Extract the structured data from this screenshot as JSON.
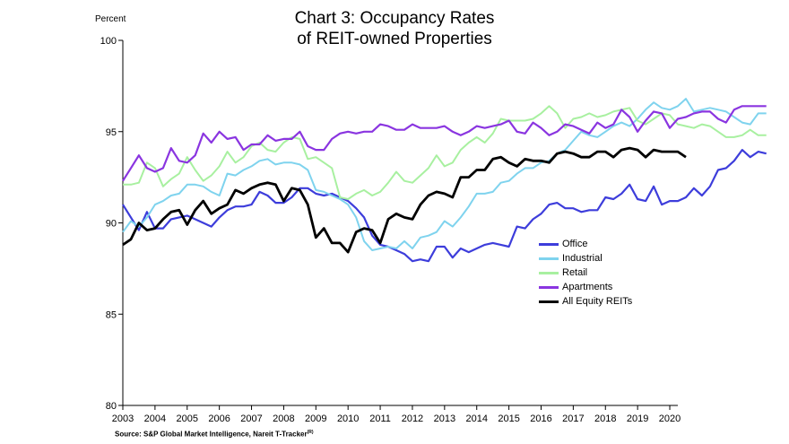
{
  "chart_data": {
    "type": "line",
    "title": "Chart 3: Occupancy Rates\nof REIT-owned Properties",
    "title_line1": "Chart 3: Occupancy Rates",
    "title_line2": "of REIT-owned Properties",
    "ylabel": "Percent",
    "xlabel": "",
    "ylim": [
      80,
      100
    ],
    "yticks": [
      80,
      85,
      90,
      95,
      100
    ],
    "xlim": [
      2003,
      2020.25
    ],
    "xticks": [
      "2003",
      "2004",
      "2005",
      "2006",
      "2007",
      "2008",
      "2009",
      "2010",
      "2011",
      "2012",
      "2013",
      "2014",
      "2015",
      "2016",
      "2017",
      "2018",
      "2019",
      "2020"
    ],
    "x_start": 2003,
    "x_step": 0.25,
    "legend_position": "right",
    "grid": false,
    "source": "Source: S&P Global Market Intelligence, Nareit T-Tracker",
    "source_sup": "(R)",
    "series": [
      {
        "name": "Office",
        "color": "#3d3ddb",
        "width": 2.2,
        "values": [
          91.0,
          90.3,
          89.6,
          90.6,
          89.7,
          89.7,
          90.2,
          90.3,
          90.4,
          90.2,
          90.0,
          89.8,
          90.3,
          90.7,
          90.9,
          90.9,
          91.0,
          91.7,
          91.5,
          91.1,
          91.1,
          91.4,
          91.9,
          91.9,
          91.6,
          91.5,
          91.6,
          91.4,
          91.2,
          90.8,
          90.3,
          89.3,
          88.8,
          88.7,
          88.5,
          88.3,
          87.9,
          88.0,
          87.9,
          88.7,
          88.7,
          88.1,
          88.6,
          88.4,
          88.6,
          88.8,
          88.9,
          88.8,
          88.7,
          89.8,
          89.7,
          90.2,
          90.5,
          91.0,
          91.1,
          90.8,
          90.8,
          90.6,
          90.7,
          90.7,
          91.4,
          91.3,
          91.6,
          92.1,
          91.3,
          91.2,
          92.0,
          91.0,
          91.2,
          91.2,
          91.4,
          91.9,
          91.5,
          92.0,
          92.9,
          93.0,
          93.4,
          94.0,
          93.6,
          93.9,
          93.8
        ]
      },
      {
        "name": "Industrial",
        "color": "#7fd3ee",
        "width": 2.0,
        "values": [
          89.5,
          90.1,
          89.8,
          90.3,
          91.0,
          91.2,
          91.5,
          91.6,
          92.1,
          92.1,
          92.0,
          91.7,
          91.5,
          92.7,
          92.6,
          92.9,
          93.1,
          93.4,
          93.5,
          93.2,
          93.3,
          93.3,
          93.2,
          92.9,
          91.8,
          91.7,
          91.5,
          91.3,
          91.0,
          90.3,
          89.0,
          88.5,
          88.6,
          88.7,
          88.6,
          89.0,
          88.6,
          89.2,
          89.3,
          89.5,
          90.1,
          89.8,
          90.3,
          90.9,
          91.6,
          91.6,
          91.7,
          92.2,
          92.3,
          92.7,
          93.0,
          93.0,
          93.3,
          93.4,
          93.8,
          94.0,
          94.5,
          95.0,
          94.8,
          94.7,
          95.0,
          95.3,
          95.5,
          95.3,
          95.7,
          96.2,
          96.6,
          96.3,
          96.2,
          96.4,
          96.8,
          96.1,
          96.2,
          96.3,
          96.2,
          96.1,
          95.8,
          95.5,
          95.4,
          96.0,
          96.0
        ]
      },
      {
        "name": "Retail",
        "color": "#a8f0a0",
        "width": 2.0,
        "values": [
          92.1,
          92.1,
          92.2,
          93.3,
          93.0,
          92.0,
          92.4,
          92.7,
          93.6,
          92.9,
          92.3,
          92.6,
          93.1,
          93.9,
          93.3,
          93.6,
          94.2,
          94.4,
          94.0,
          93.9,
          94.4,
          94.7,
          94.6,
          93.5,
          93.6,
          93.3,
          93.0,
          91.4,
          91.3,
          91.6,
          91.8,
          91.5,
          91.7,
          92.2,
          92.8,
          92.3,
          92.2,
          92.6,
          93.0,
          93.7,
          93.1,
          93.3,
          94.0,
          94.4,
          94.7,
          94.4,
          94.9,
          95.7,
          95.6,
          95.6,
          95.6,
          95.7,
          96.0,
          96.4,
          96.0,
          95.2,
          95.7,
          95.8,
          96.0,
          95.8,
          95.9,
          96.1,
          96.2,
          96.3,
          95.6,
          95.4,
          95.7,
          96.0,
          95.9,
          95.4,
          95.3,
          95.2,
          95.4,
          95.3,
          95.0,
          94.7,
          94.7,
          94.8,
          95.1,
          94.8,
          94.8
        ]
      },
      {
        "name": "Apartments",
        "color": "#8a35e0",
        "width": 2.2,
        "values": [
          92.3,
          93.0,
          93.7,
          93.0,
          92.8,
          93.0,
          94.1,
          93.4,
          93.3,
          93.7,
          94.9,
          94.4,
          95.0,
          94.6,
          94.7,
          94.0,
          94.3,
          94.3,
          94.8,
          94.5,
          94.6,
          94.6,
          95.0,
          94.2,
          94.0,
          94.0,
          94.6,
          94.9,
          95.0,
          94.9,
          95.0,
          95.0,
          95.4,
          95.3,
          95.1,
          95.1,
          95.4,
          95.2,
          95.2,
          95.2,
          95.3,
          95.0,
          94.8,
          95.0,
          95.3,
          95.2,
          95.3,
          95.4,
          95.6,
          95.0,
          94.9,
          95.5,
          95.2,
          94.8,
          95.0,
          95.4,
          95.3,
          95.1,
          94.9,
          95.5,
          95.2,
          95.4,
          96.2,
          95.8,
          95.0,
          95.6,
          96.1,
          96.0,
          95.2,
          95.7,
          95.8,
          96.0,
          96.1,
          96.1,
          95.7,
          95.5,
          96.2,
          96.4,
          96.4,
          96.4,
          96.4
        ]
      },
      {
        "name": "All Equity REITs",
        "color": "#000000",
        "width": 2.8,
        "values": [
          88.8,
          89.1,
          90.0,
          89.6,
          89.7,
          90.2,
          90.6,
          90.7,
          89.9,
          90.7,
          91.2,
          90.5,
          90.8,
          91.0,
          91.8,
          91.6,
          91.9,
          92.1,
          92.2,
          92.1,
          91.2,
          91.9,
          91.8,
          91.0,
          89.2,
          89.7,
          88.9,
          88.9,
          88.4,
          89.5,
          89.7,
          89.6,
          88.9,
          90.2,
          90.5,
          90.3,
          90.2,
          91.0,
          91.5,
          91.7,
          91.6,
          91.4,
          92.5,
          92.5,
          92.9,
          92.9,
          93.5,
          93.6,
          93.3,
          93.1,
          93.5,
          93.4,
          93.4,
          93.3,
          93.8,
          93.9,
          93.8,
          93.6,
          93.6,
          93.9,
          93.9,
          93.6,
          94.0,
          94.1,
          94.0,
          93.6,
          94.0,
          93.9,
          93.9,
          93.9,
          93.6
        ]
      }
    ]
  }
}
